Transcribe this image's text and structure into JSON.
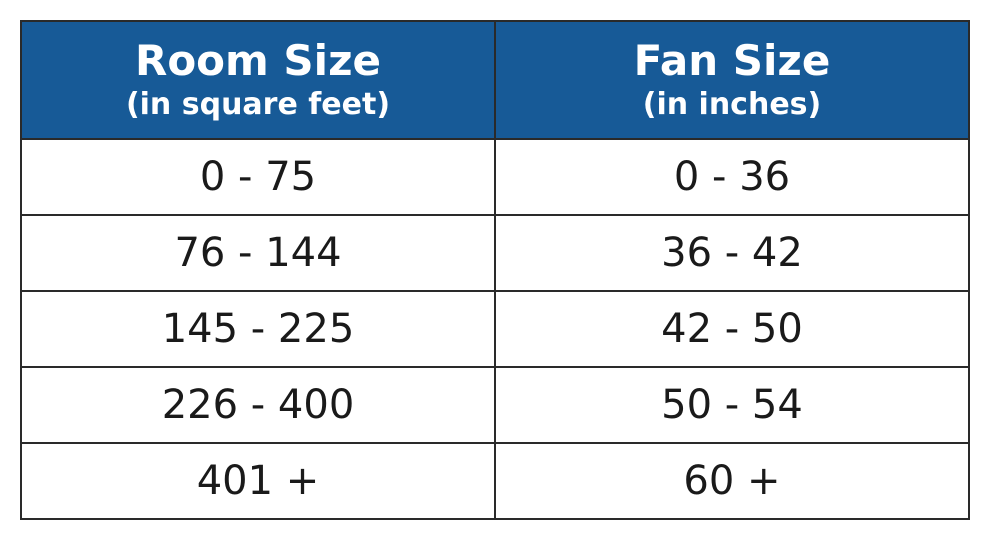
{
  "table": {
    "header": [
      {
        "title": "Room Size",
        "subtitle": "(in square feet)"
      },
      {
        "title": "Fan Size",
        "subtitle": "(in inches)"
      }
    ],
    "rows": [
      [
        "0 - 75",
        "0 - 36"
      ],
      [
        "76 - 144",
        "36 - 42"
      ],
      [
        "145 - 225",
        "42 - 50"
      ],
      [
        "226 - 400",
        "50 - 54"
      ],
      [
        "401 +",
        "60 +"
      ]
    ]
  }
}
